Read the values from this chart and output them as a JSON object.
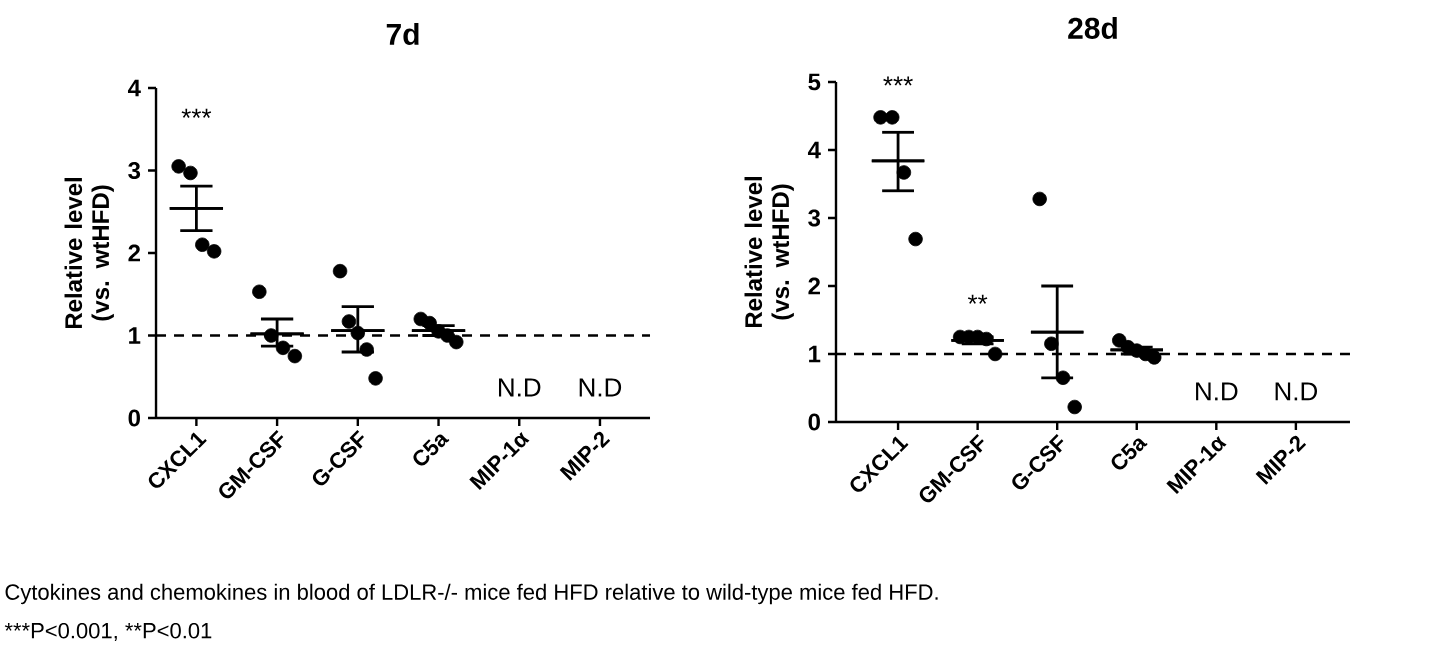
{
  "chart_data": [
    {
      "type": "scatter",
      "title": "7d",
      "ylabel": "Relative level (vs. wtHFD)",
      "categories": [
        "CXCL1",
        "GM-CSF",
        "G-CSF",
        "C5a",
        "MIP-1α",
        "MIP-2"
      ],
      "ylim": [
        0,
        4
      ],
      "yticks": [
        0,
        1,
        2,
        3,
        4
      ],
      "marker": "circle",
      "series": [
        {
          "color": "#000000",
          "x": [
            "CXCL1",
            "CXCL1",
            "CXCL1",
            "CXCL1",
            "GM-CSF",
            "GM-CSF",
            "GM-CSF",
            "GM-CSF",
            "G-CSF",
            "G-CSF",
            "G-CSF",
            "G-CSF",
            "G-CSF",
            "C5a",
            "C5a",
            "C5a",
            "C5a",
            "C5a"
          ],
          "values": [
            3.05,
            2.97,
            2.1,
            2.02,
            1.53,
            1.0,
            0.85,
            0.75,
            1.78,
            1.17,
            1.03,
            0.83,
            0.48,
            1.2,
            1.15,
            1.05,
            1.0,
            0.92
          ]
        },
        {
          "color": "#000000",
          "type": "box",
          "boxes": [
            {
              "low": 2.27,
              "q1": 2.54,
              "median": 2.54,
              "q3": 2.54,
              "high": 2.81
            },
            {
              "low": 0.87,
              "q1": 1.02,
              "median": 1.02,
              "q3": 1.02,
              "high": 1.2
            },
            {
              "low": 0.8,
              "q1": 1.06,
              "median": 1.06,
              "q3": 1.06,
              "high": 1.35
            },
            {
              "low": 1.0,
              "q1": 1.06,
              "median": 1.06,
              "q3": 1.06,
              "high": 1.12
            },
            null,
            null
          ]
        }
      ],
      "ref_lines": [
        {
          "axis": "y",
          "value": 1,
          "line_style": "dashed"
        }
      ],
      "annotations": [
        "***",
        "N.D",
        "N.D",
        "Cytokines and chemokines in blood of LDLR-/- mice fed HFD relative to wild-type mice fed HFD.",
        "***P<0.001, **P<0.01"
      ]
    },
    {
      "type": "scatter",
      "title": "28d",
      "ylabel": "Relative level (vs. wtHFD)",
      "categories": [
        "CXCL1",
        "GM-CSF",
        "G-CSF",
        "C5a",
        "MIP-1α",
        "MIP-2"
      ],
      "ylim": [
        0,
        5
      ],
      "yticks": [
        0,
        1,
        2,
        3,
        4,
        5
      ],
      "marker": "circle",
      "series": [
        {
          "color": "#000000",
          "x": [
            "CXCL1",
            "CXCL1",
            "CXCL1",
            "CXCL1",
            "GM-CSF",
            "GM-CSF",
            "GM-CSF",
            "GM-CSF",
            "GM-CSF",
            "G-CSF",
            "G-CSF",
            "G-CSF",
            "G-CSF",
            "C5a",
            "C5a",
            "C5a",
            "C5a",
            "C5a"
          ],
          "values": [
            4.48,
            4.48,
            3.67,
            2.69,
            1.25,
            1.25,
            1.25,
            1.22,
            1.0,
            3.28,
            1.15,
            0.65,
            0.22,
            1.2,
            1.1,
            1.05,
            1.0,
            0.95
          ]
        },
        {
          "color": "#000000",
          "type": "box",
          "boxes": [
            {
              "low": 3.4,
              "q1": 3.84,
              "median": 3.84,
              "q3": 3.84,
              "high": 4.26
            },
            {
              "low": 1.15,
              "q1": 1.2,
              "median": 1.2,
              "q3": 1.2,
              "high": 1.25
            },
            {
              "low": 0.65,
              "q1": 1.32,
              "median": 1.32,
              "q3": 1.32,
              "high": 2.0
            },
            {
              "low": 1.0,
              "q1": 1.06,
              "median": 1.06,
              "q3": 1.06,
              "high": 1.1
            },
            null,
            null
          ]
        }
      ],
      "ref_lines": [
        {
          "axis": "y",
          "value": 1,
          "line_style": "dashed"
        }
      ],
      "annotations": [
        "***",
        "**",
        "N.D",
        "N.D"
      ]
    }
  ]
}
